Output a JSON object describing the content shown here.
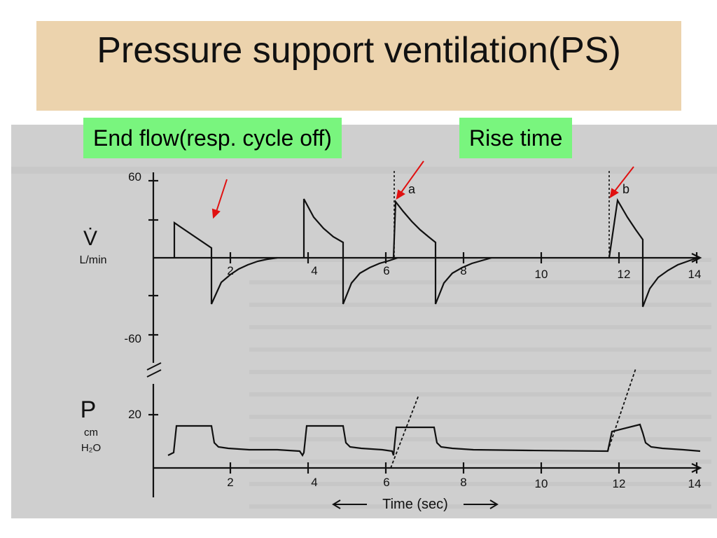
{
  "title": "Pressure support ventilation(PS)",
  "callouts": {
    "end_flow": "End flow(resp. cycle off)",
    "rise_time": "Rise time"
  },
  "flow_panel": {
    "symbol": "V̇",
    "unit": "L/min",
    "y_top_label": "60",
    "y_bottom_label": "-60",
    "x_ticks": [
      "2",
      "4",
      "6",
      "8",
      "10",
      "12",
      "14"
    ],
    "markers": {
      "a": "a",
      "b": "b"
    }
  },
  "pressure_panel": {
    "symbol": "P",
    "unit_cm": "cm",
    "unit_h2o": "H₂O",
    "y_label": "20",
    "x_ticks": [
      "2",
      "4",
      "6",
      "8",
      "10",
      "12",
      "14"
    ]
  },
  "time_axis": {
    "label": "Time (sec)"
  },
  "colors": {
    "title_bg": "#ecd3ad",
    "callout_bg": "#79f57e",
    "arrow": "#e01010",
    "scan_bg": "#cfcfcf"
  }
}
